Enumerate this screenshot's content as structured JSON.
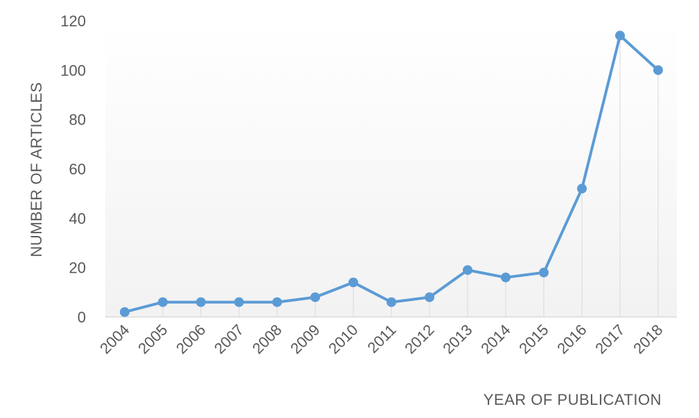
{
  "chart_data": {
    "type": "line",
    "title": "",
    "xlabel": "YEAR OF PUBLICATION",
    "ylabel": "NUMBER OF ARTICLES",
    "categories": [
      "2004",
      "2005",
      "2006",
      "2007",
      "2008",
      "2009",
      "2010",
      "2011",
      "2012",
      "2013",
      "2014",
      "2015",
      "2016",
      "2017",
      "2018"
    ],
    "series": [
      {
        "values": [
          2,
          6,
          6,
          6,
          6,
          8,
          14,
          6,
          8,
          19,
          16,
          18,
          52,
          114,
          100
        ]
      }
    ],
    "ylim": [
      0,
      120
    ],
    "yticks": [
      0,
      20,
      40,
      60,
      80,
      100,
      120
    ],
    "grid": "vertical drop lines",
    "legend": "none",
    "colors": {
      "line": "#5b9bd5",
      "text": "#595959",
      "axis": "#d9d9d9",
      "background_gradient_bottom": "#f2f2f2"
    }
  }
}
